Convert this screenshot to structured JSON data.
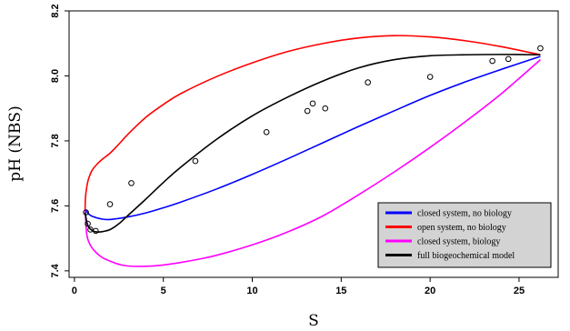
{
  "chart_data": {
    "type": "line",
    "title": "",
    "xlabel": "S",
    "ylabel": "pH (NBS)",
    "xlim": [
      -0.3,
      27.2
    ],
    "ylim": [
      7.38,
      8.2
    ],
    "xticks": [
      0,
      5,
      10,
      15,
      20,
      25
    ],
    "yticks": [
      7.4,
      7.6,
      7.8,
      8.0,
      8.2
    ],
    "ytick_labels": [
      "7.4",
      "7.6",
      "7.8",
      "8.0",
      "8.2"
    ],
    "grid": false,
    "legend_position": "bottom-right",
    "series": [
      {
        "name": "closed system, no biology",
        "color": "#0000ff",
        "x": [
          0.6,
          0.8,
          1.0,
          1.5,
          2.0,
          3.0,
          4.0,
          5.0,
          6.0,
          8.0,
          10.0,
          12.0,
          14.0,
          16.0,
          18.0,
          20.0,
          22.0,
          24.0,
          26.2
        ],
        "y": [
          7.59,
          7.575,
          7.568,
          7.56,
          7.558,
          7.566,
          7.578,
          7.594,
          7.612,
          7.652,
          7.697,
          7.745,
          7.795,
          7.845,
          7.893,
          7.94,
          7.982,
          8.02,
          8.06
        ]
      },
      {
        "name": "open system, no biology",
        "color": "#ff0000",
        "x": [
          0.6,
          0.62,
          0.7,
          0.8,
          1.0,
          1.3,
          1.6,
          2.0,
          2.5,
          3.0,
          4.0,
          5.0,
          6.0,
          8.0,
          10.0,
          12.0,
          14.0,
          16.0,
          18.0,
          20.0,
          22.0,
          24.0,
          26.2
        ],
        "y": [
          7.59,
          7.625,
          7.66,
          7.684,
          7.71,
          7.73,
          7.745,
          7.762,
          7.79,
          7.82,
          7.872,
          7.912,
          7.946,
          7.998,
          8.04,
          8.075,
          8.1,
          8.117,
          8.124,
          8.12,
          8.108,
          8.09,
          8.065
        ]
      },
      {
        "name": "closed system, biology",
        "color": "#ff00ff",
        "x": [
          0.6,
          0.65,
          0.7,
          0.8,
          1.0,
          1.3,
          1.6,
          2.0,
          2.5,
          3.0,
          4.0,
          5.0,
          6.0,
          7.0,
          8.0,
          10.0,
          12.0,
          14.0,
          16.0,
          18.0,
          20.0,
          22.0,
          24.0,
          26.2
        ],
        "y": [
          7.59,
          7.54,
          7.51,
          7.49,
          7.47,
          7.452,
          7.44,
          7.43,
          7.42,
          7.415,
          7.414,
          7.418,
          7.426,
          7.436,
          7.448,
          7.48,
          7.52,
          7.57,
          7.635,
          7.705,
          7.78,
          7.86,
          7.945,
          8.05
        ]
      },
      {
        "name": "full biogeochemical model",
        "color": "#000000",
        "x": [
          0.6,
          0.7,
          0.8,
          1.0,
          1.2,
          1.5,
          2.0,
          2.5,
          3.0,
          4.0,
          5.0,
          6.0,
          8.0,
          10.0,
          12.0,
          14.0,
          16.0,
          18.0,
          20.0,
          22.0,
          24.0,
          26.2
        ],
        "y": [
          7.58,
          7.55,
          7.535,
          7.524,
          7.52,
          7.52,
          7.527,
          7.545,
          7.57,
          7.62,
          7.672,
          7.72,
          7.805,
          7.877,
          7.935,
          7.985,
          8.025,
          8.05,
          8.062,
          8.065,
          8.066,
          8.065
        ]
      }
    ],
    "points": {
      "x": [
        0.65,
        0.75,
        0.9,
        1.2,
        2.0,
        3.2,
        6.8,
        10.8,
        13.1,
        13.4,
        14.1,
        16.5,
        20.0,
        23.5,
        24.4,
        26.2
      ],
      "y": [
        7.58,
        7.545,
        7.527,
        7.523,
        7.605,
        7.67,
        7.738,
        7.827,
        7.892,
        7.915,
        7.9,
        7.98,
        7.997,
        8.046,
        8.052,
        8.085
      ]
    }
  }
}
